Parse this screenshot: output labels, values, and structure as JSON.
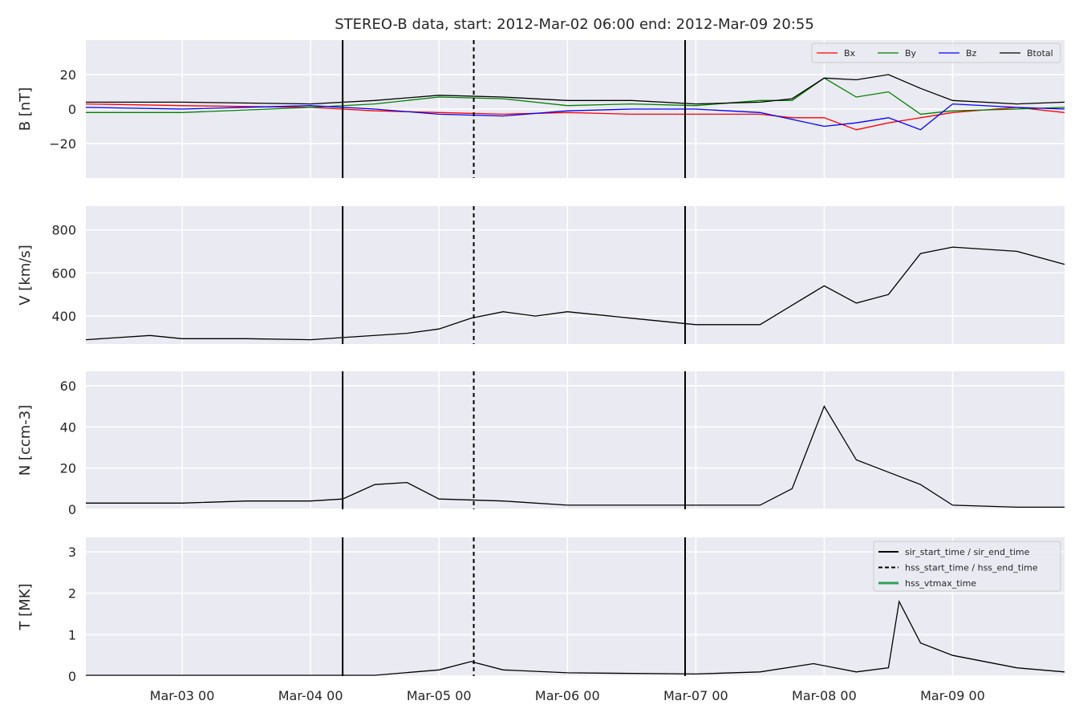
{
  "chart_data": {
    "type": "line",
    "title": "STEREO-B data, start: 2012-Mar-02 06:00  end: 2012-Mar-09 20:55",
    "x_range": [
      "2012-03-02 06:00",
      "2012-03-09 20:55"
    ],
    "x_tick_labels": [
      "Mar-03 00",
      "Mar-04 00",
      "Mar-05 00",
      "Mar-06 00",
      "Mar-07 00",
      "Mar-08 00",
      "Mar-09 00"
    ],
    "x_tick_dates": [
      "2012-03-03 00:00",
      "2012-03-04 00:00",
      "2012-03-05 00:00",
      "2012-03-06 00:00",
      "2012-03-07 00:00",
      "2012-03-08 00:00",
      "2012-03-09 00:00"
    ],
    "grid": true,
    "event_lines": {
      "sir_start_time": "2012-03-04 06:00",
      "sir_end_time": "2012-03-06 22:00",
      "hss_start_time": "2012-03-05 06:30",
      "hss_end_time": "2012-03-06 22:00"
    },
    "panels": [
      {
        "id": "b",
        "ylabel": "B [nT]",
        "ylim": [
          -40,
          40
        ],
        "yticks": [
          -20,
          0,
          20
        ],
        "ytick_labels": [
          "−20",
          "0",
          "20"
        ],
        "legend": {
          "placement": "top-right",
          "columns": 4,
          "entries": [
            "Bx",
            "By",
            "Bz",
            "Btotal"
          ]
        },
        "series": [
          {
            "name": "Bx",
            "color": "#ff0000",
            "x": [
              "2012-03-02 06:00",
              "2012-03-03 00:00",
              "2012-03-04 00:00",
              "2012-03-04 12:00",
              "2012-03-05 00:00",
              "2012-03-05 12:00",
              "2012-03-06 00:00",
              "2012-03-06 12:00",
              "2012-03-07 00:00",
              "2012-03-07 12:00",
              "2012-03-07 18:00",
              "2012-03-08 00:00",
              "2012-03-08 06:00",
              "2012-03-08 12:00",
              "2012-03-08 18:00",
              "2012-03-09 00:00",
              "2012-03-09 12:00",
              "2012-03-09 20:55"
            ],
            "y": [
              3,
              2,
              1,
              -1,
              -2,
              -3,
              -2,
              -3,
              -3,
              -3,
              -5,
              -5,
              -12,
              -8,
              -5,
              -2,
              1,
              -2
            ]
          },
          {
            "name": "By",
            "color": "#008000",
            "x": [
              "2012-03-02 06:00",
              "2012-03-03 00:00",
              "2012-03-04 00:00",
              "2012-03-04 12:00",
              "2012-03-05 00:00",
              "2012-03-05 12:00",
              "2012-03-06 00:00",
              "2012-03-06 12:00",
              "2012-03-07 00:00",
              "2012-03-07 12:00",
              "2012-03-07 18:00",
              "2012-03-08 00:00",
              "2012-03-08 06:00",
              "2012-03-08 12:00",
              "2012-03-08 18:00",
              "2012-03-09 00:00",
              "2012-03-09 12:00",
              "2012-03-09 20:55"
            ],
            "y": [
              -2,
              -2,
              1,
              3,
              7,
              6,
              2,
              3,
              2,
              5,
              5,
              18,
              7,
              10,
              -3,
              -1,
              0,
              1
            ]
          },
          {
            "name": "Bz",
            "color": "#0000ff",
            "x": [
              "2012-03-02 06:00",
              "2012-03-03 00:00",
              "2012-03-04 00:00",
              "2012-03-04 12:00",
              "2012-03-05 00:00",
              "2012-03-05 12:00",
              "2012-03-06 00:00",
              "2012-03-06 12:00",
              "2012-03-07 00:00",
              "2012-03-07 12:00",
              "2012-03-07 18:00",
              "2012-03-08 00:00",
              "2012-03-08 06:00",
              "2012-03-08 12:00",
              "2012-03-08 18:00",
              "2012-03-09 00:00",
              "2012-03-09 12:00",
              "2012-03-09 20:55"
            ],
            "y": [
              1,
              0,
              2,
              0,
              -3,
              -4,
              -1,
              0,
              0,
              -2,
              -6,
              -10,
              -8,
              -5,
              -12,
              3,
              1,
              0
            ]
          },
          {
            "name": "Btotal",
            "color": "#000000",
            "x": [
              "2012-03-02 06:00",
              "2012-03-03 00:00",
              "2012-03-04 00:00",
              "2012-03-04 12:00",
              "2012-03-05 00:00",
              "2012-03-05 12:00",
              "2012-03-06 00:00",
              "2012-03-06 12:00",
              "2012-03-07 00:00",
              "2012-03-07 12:00",
              "2012-03-07 18:00",
              "2012-03-08 00:00",
              "2012-03-08 06:00",
              "2012-03-08 12:00",
              "2012-03-08 18:00",
              "2012-03-09 00:00",
              "2012-03-09 12:00",
              "2012-03-09 20:55"
            ],
            "y": [
              4,
              4,
              3,
              5,
              8,
              7,
              5,
              5,
              3,
              4,
              6,
              18,
              17,
              20,
              12,
              5,
              3,
              4
            ]
          }
        ]
      },
      {
        "id": "v",
        "ylabel": "V [km/s]",
        "ylim": [
          270,
          910
        ],
        "yticks": [
          400,
          600,
          800
        ],
        "ytick_labels": [
          "400",
          "600",
          "800"
        ],
        "series": [
          {
            "name": "V",
            "color": "#000000",
            "x": [
              "2012-03-02 06:00",
              "2012-03-02 18:00",
              "2012-03-03 00:00",
              "2012-03-03 12:00",
              "2012-03-04 00:00",
              "2012-03-04 06:00",
              "2012-03-04 18:00",
              "2012-03-05 00:00",
              "2012-03-05 06:00",
              "2012-03-05 12:00",
              "2012-03-05 18:00",
              "2012-03-06 00:00",
              "2012-03-06 12:00",
              "2012-03-07 00:00",
              "2012-03-07 12:00",
              "2012-03-07 18:00",
              "2012-03-08 00:00",
              "2012-03-08 06:00",
              "2012-03-08 12:00",
              "2012-03-08 18:00",
              "2012-03-09 00:00",
              "2012-03-09 12:00",
              "2012-03-09 20:55"
            ],
            "y": [
              290,
              310,
              295,
              295,
              290,
              300,
              320,
              340,
              390,
              420,
              400,
              420,
              390,
              360,
              360,
              450,
              540,
              460,
              500,
              690,
              720,
              700,
              640
            ]
          }
        ]
      },
      {
        "id": "n",
        "ylabel": "N [ccm-3]",
        "ylim": [
          0,
          67
        ],
        "yticks": [
          0,
          20,
          40,
          60
        ],
        "ytick_labels": [
          "0",
          "20",
          "40",
          "60"
        ],
        "series": [
          {
            "name": "N",
            "color": "#000000",
            "x": [
              "2012-03-02 06:00",
              "2012-03-03 00:00",
              "2012-03-03 12:00",
              "2012-03-04 00:00",
              "2012-03-04 06:00",
              "2012-03-04 12:00",
              "2012-03-04 18:00",
              "2012-03-05 00:00",
              "2012-03-05 12:00",
              "2012-03-06 00:00",
              "2012-03-07 00:00",
              "2012-03-07 12:00",
              "2012-03-07 18:00",
              "2012-03-08 00:00",
              "2012-03-08 06:00",
              "2012-03-08 12:00",
              "2012-03-08 18:00",
              "2012-03-09 00:00",
              "2012-03-09 12:00",
              "2012-03-09 20:55"
            ],
            "y": [
              3,
              3,
              4,
              4,
              5,
              12,
              13,
              5,
              4,
              2,
              2,
              2,
              10,
              50,
              24,
              18,
              12,
              2,
              1,
              1
            ]
          }
        ]
      },
      {
        "id": "t",
        "ylabel": "T [MK]",
        "ylim": [
          0,
          3.35
        ],
        "yticks": [
          0,
          1,
          2,
          3
        ],
        "ytick_labels": [
          "0",
          "1",
          "2",
          "3"
        ],
        "legend": {
          "placement": "top-right",
          "columns": 1,
          "entries": [
            "sir_start_time / sir_end_time",
            "hss_start_time / hss_end_time",
            "hss_vtmax_time"
          ],
          "entry_colors": [
            "#000000",
            "#000000",
            "#2ca05a"
          ]
        },
        "series": [
          {
            "name": "T",
            "color": "#000000",
            "x": [
              "2012-03-02 06:00",
              "2012-03-04 12:00",
              "2012-03-05 00:00",
              "2012-03-05 06:00",
              "2012-03-05 12:00",
              "2012-03-06 00:00",
              "2012-03-07 00:00",
              "2012-03-07 12:00",
              "2012-03-07 22:00",
              "2012-03-08 06:00",
              "2012-03-08 12:00",
              "2012-03-08 14:00",
              "2012-03-08 18:00",
              "2012-03-09 00:00",
              "2012-03-09 12:00",
              "2012-03-09 20:55"
            ],
            "y": [
              0.02,
              0.02,
              0.15,
              0.35,
              0.15,
              0.08,
              0.05,
              0.1,
              0.3,
              0.1,
              0.2,
              1.8,
              0.8,
              0.5,
              0.2,
              0.1
            ]
          }
        ]
      }
    ]
  }
}
